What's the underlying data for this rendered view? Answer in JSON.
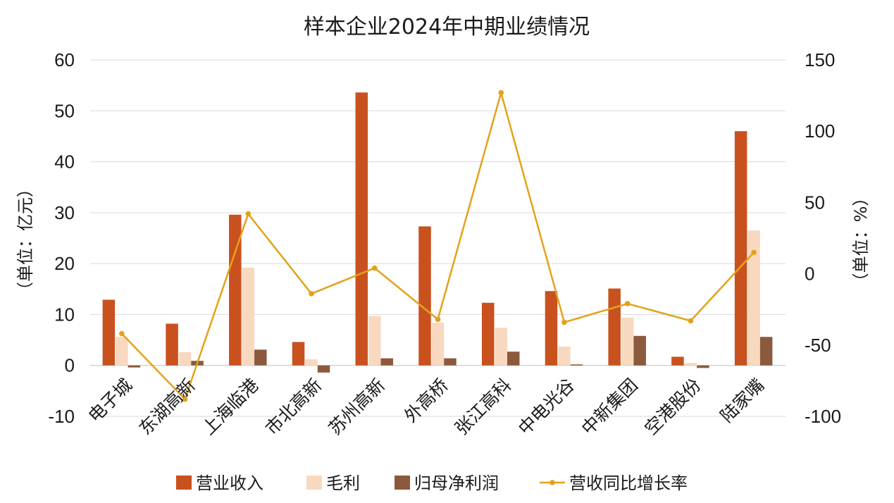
{
  "chart_data": {
    "type": "bar",
    "title": "样本企业2024年中期业绩情况",
    "ylabel_left": "（单位：亿元）",
    "ylabel_right": "（单位：%）",
    "ylim_left": [
      -10,
      60
    ],
    "ylim_right": [
      -100,
      150
    ],
    "yticks_left": [
      -10,
      0,
      10,
      20,
      30,
      40,
      50,
      60
    ],
    "yticks_right": [
      -100,
      -50,
      0,
      50,
      100,
      150
    ],
    "grid": true,
    "legend_position": "bottom",
    "categories": [
      "电子城",
      "东湖高新",
      "上海临港",
      "市北高新",
      "苏州高新",
      "外高桥",
      "张江高科",
      "中电光谷",
      "中新集团",
      "空港股份",
      "陆家嘴"
    ],
    "series": [
      {
        "name": "营业收入",
        "type": "bar",
        "axis": "left",
        "color": "#c9511e",
        "values": [
          12.9,
          8.2,
          29.6,
          4.6,
          53.6,
          27.3,
          12.3,
          14.6,
          15.1,
          1.7,
          46.0
        ]
      },
      {
        "name": "毛利",
        "type": "bar",
        "axis": "left",
        "color": "#f8d9bf",
        "values": [
          5.6,
          2.6,
          19.2,
          1.2,
          9.7,
          8.4,
          7.4,
          3.7,
          9.4,
          0.5,
          26.5
        ]
      },
      {
        "name": "归母净利润",
        "type": "bar",
        "axis": "left",
        "color": "#8b5a3c",
        "values": [
          -0.4,
          0.9,
          3.1,
          -1.4,
          1.4,
          1.4,
          2.7,
          0.2,
          5.8,
          -0.5,
          5.6
        ]
      },
      {
        "name": "营收同比增长率",
        "type": "line",
        "axis": "right",
        "color": "#e3a21a",
        "values": [
          -42,
          -88,
          42,
          -14,
          4,
          -32,
          127,
          -34,
          -21,
          -33,
          15
        ]
      }
    ]
  }
}
